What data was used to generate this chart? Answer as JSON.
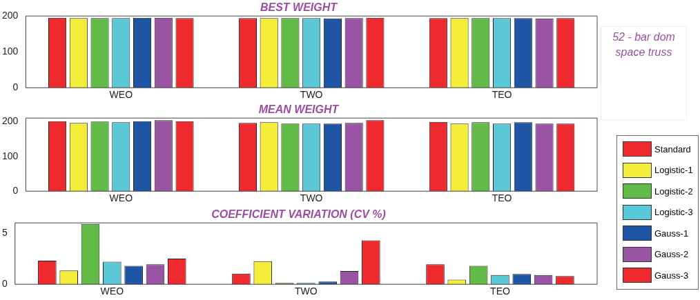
{
  "chart_data": [
    {
      "type": "bar",
      "title": "BEST WEIGHT",
      "categories": [
        "WEO",
        "TWO",
        "TEO"
      ],
      "ylim": [
        0,
        200
      ],
      "yticks": [
        0,
        100,
        200
      ],
      "grid": false,
      "legend": "right",
      "annotations": [
        "52 - bar dom space truss"
      ],
      "series": [
        {
          "name": "Standard",
          "color": "#ee2a2f",
          "values": [
            195,
            194,
            194
          ]
        },
        {
          "name": "Logistic-1",
          "color": "#f4ee3a",
          "values": [
            194,
            194,
            194
          ]
        },
        {
          "name": "Logistic-2",
          "color": "#62bb47",
          "values": [
            194,
            194,
            194
          ]
        },
        {
          "name": "Logistic-3",
          "color": "#5bc8d8",
          "values": [
            194,
            194,
            194
          ]
        },
        {
          "name": "Gauss-1",
          "color": "#1e55a5",
          "values": [
            195,
            193,
            194
          ]
        },
        {
          "name": "Gauss-2",
          "color": "#9955a3",
          "values": [
            195,
            194,
            193
          ]
        },
        {
          "name": "Gauss-3",
          "color": "#ee2a2f",
          "values": [
            194,
            195,
            194
          ]
        }
      ]
    },
    {
      "type": "bar",
      "title": "MEAN WEIGHT",
      "categories": [
        "WEO",
        "TWO",
        "TEO"
      ],
      "ylim": [
        0,
        210
      ],
      "yticks": [
        0,
        100,
        200
      ],
      "grid": false,
      "series": [
        {
          "color": "#ee2a2f",
          "values": [
            201,
            196,
            199
          ]
        },
        {
          "color": "#f4ee3a",
          "values": [
            196,
            198,
            194
          ]
        },
        {
          "color": "#62bb47",
          "values": [
            200,
            194,
            198
          ]
        },
        {
          "color": "#5bc8d8",
          "values": [
            198,
            194,
            194
          ]
        },
        {
          "color": "#1e55a5",
          "values": [
            201,
            194,
            198
          ]
        },
        {
          "color": "#9955a3",
          "values": [
            204,
            196,
            194
          ]
        },
        {
          "color": "#ee2a2f",
          "values": [
            201,
            204,
            194
          ]
        }
      ]
    },
    {
      "type": "bar",
      "title": "COEFFICIENT VARIATION (CV %)",
      "categories": [
        "WEO",
        "TWO",
        "TEO"
      ],
      "ylim": [
        0,
        6
      ],
      "yticks": [
        0,
        5
      ],
      "grid": false,
      "series": [
        {
          "color": "#ee2a2f",
          "values": [
            2.3,
            1.05,
            1.95
          ]
        },
        {
          "color": "#f4ee3a",
          "values": [
            1.35,
            2.25,
            0.45
          ]
        },
        {
          "color": "#62bb47",
          "values": [
            5.9,
            0.13,
            1.8
          ]
        },
        {
          "color": "#5bc8d8",
          "values": [
            2.2,
            0.13,
            0.9
          ]
        },
        {
          "color": "#1e55a5",
          "values": [
            1.8,
            0.27,
            1.0
          ]
        },
        {
          "color": "#9955a3",
          "values": [
            1.95,
            1.3,
            0.9
          ]
        },
        {
          "color": "#ee2a2f",
          "values": [
            2.5,
            4.3,
            0.8
          ]
        }
      ]
    }
  ]
}
